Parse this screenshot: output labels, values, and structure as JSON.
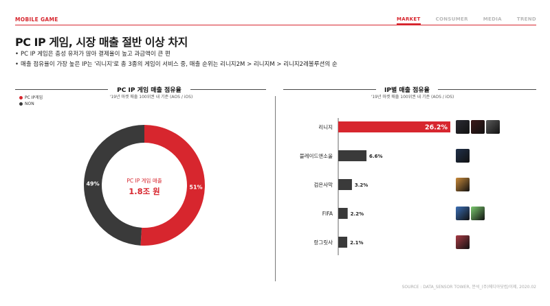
{
  "header": {
    "brand": "MOBILE GAME",
    "nav": [
      "MARKET",
      "CONSUMER",
      "MEDIA",
      "TREND"
    ],
    "active_nav": "MARKET",
    "accent_color": "#d7262e"
  },
  "headline": "PC IP 게임, 시장 매출 절반 이상 차지",
  "bullets": [
    "PC IP 게임은 충성 유저가 많아 결제율이 높고 과금액이 큰 편",
    "매출 점유율이 가장 높은 IP는 '리니지'로 총 3종의 게임이 서비스 중, 매출 순위는 리니지2M > 리니지M > 리니지2레볼루션의 순"
  ],
  "left_panel": {
    "title": "PC IP 게임 매출 점유율",
    "note": "'19년 마켓 매출 100위권 내 기준 (AOS / iOS)",
    "center_label_small": "PC IP 게임 매출",
    "center_label_big": "1.8조 원"
  },
  "right_panel": {
    "title": "IP별 매출 점유율",
    "note": "'19년 마켓 매출 100위권 내 기준 (AOS / iOS)"
  },
  "chart_data": [
    {
      "type": "pie",
      "title": "PC IP 게임 매출 점유율",
      "categories": [
        "PC IP게임",
        "NON"
      ],
      "values": [
        51,
        49
      ],
      "value_labels": [
        "51%",
        "49%"
      ],
      "colors": [
        "#d7262e",
        "#3a3a3a"
      ],
      "legend": "top-left",
      "donut": true
    },
    {
      "type": "bar",
      "orientation": "horizontal",
      "title": "IP별 매출 점유율",
      "categories": [
        "리니지",
        "블레이드앤소울",
        "검은사막",
        "FIFA",
        "랑그릿사"
      ],
      "values": [
        26.2,
        6.6,
        3.2,
        2.2,
        2.1
      ],
      "value_labels": [
        "26.2%",
        "6.6%",
        "3.2%",
        "2.2%",
        "2.1%"
      ],
      "highlight_color": "#d7262e",
      "bar_color": "#3a3a3a",
      "xlim": [
        0,
        26.2
      ],
      "grid": false,
      "thumbnails_per_row": [
        3,
        1,
        1,
        2,
        1
      ]
    }
  ],
  "footer": {
    "source": "SOURCE : DATA_SENSOR TOWER, 분석_(주)메디아닷컴/이제, 2020.02"
  }
}
